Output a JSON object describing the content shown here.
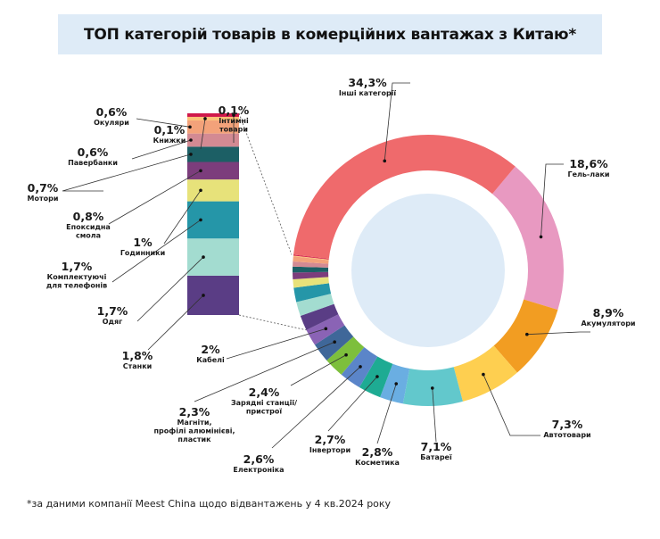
{
  "title": "ТОП категорій товарів в комерційних вантажах з Китаю*",
  "footnote": "*за даними компанії Meest China щодо відвантажень у 4 кв.2024 року",
  "chart_data": {
    "type": "pie",
    "subtype": "donut-with-bar-of-pie",
    "title": "ТОП категорій товарів в комерційних вантажах з Китаю*",
    "unit": "%",
    "slices": [
      {
        "label": "Гель-лаки",
        "value": 18.6,
        "value_text": "18,6%",
        "label_lines": [
          "Гель-лаки"
        ],
        "color": "#e899c1"
      },
      {
        "label": "Акумулятори",
        "value": 8.9,
        "value_text": "8,9%",
        "label_lines": [
          "Акумулятори"
        ],
        "color": "#f29d22"
      },
      {
        "label": "Автотовари",
        "value": 7.3,
        "value_text": "7,3%",
        "label_lines": [
          "Автотовари"
        ],
        "color": "#fecf50"
      },
      {
        "label": "Батареї",
        "value": 7.1,
        "value_text": "7,1%",
        "label_lines": [
          "Батареї"
        ],
        "color": "#62c8cc"
      },
      {
        "label": "Косметика",
        "value": 2.8,
        "value_text": "2,8%",
        "label_lines": [
          "Косметика"
        ],
        "color": "#6aaee2"
      },
      {
        "label": "Інвертори",
        "value": 2.7,
        "value_text": "2,7%",
        "label_lines": [
          "Інвертори"
        ],
        "color": "#1eab93"
      },
      {
        "label": "Електроніка",
        "value": 2.6,
        "value_text": "2,6%",
        "label_lines": [
          "Електроніка"
        ],
        "color": "#5b85c9"
      },
      {
        "label": "Зарядні станції/пристрої",
        "value": 2.4,
        "value_text": "2,4%",
        "label_lines": [
          "Зарядні станції/",
          "пристрої"
        ],
        "color": "#7dbf3c"
      },
      {
        "label": "Магніти, профілі алюмінієві, пластик",
        "value": 2.3,
        "value_text": "2,3%",
        "label_lines": [
          "Магніти,",
          "профілі алюмінієві,",
          "пластик"
        ],
        "color": "#3f6799"
      },
      {
        "label": "Кабелі",
        "value": 2.0,
        "value_text": "2%",
        "label_lines": [
          "Кабелі"
        ],
        "color": "#8a63b5"
      },
      {
        "label": "Станки",
        "value": 1.8,
        "value_text": "1,8%",
        "label_lines": [
          "Станки"
        ],
        "color": "#5a3d85"
      },
      {
        "label": "Одяг",
        "value": 1.7,
        "value_text": "1,7%",
        "label_lines": [
          "Одяг"
        ],
        "color": "#a3dcd0"
      },
      {
        "label": "Комплектуючі для телефонів",
        "value": 1.7,
        "value_text": "1,7%",
        "label_lines": [
          "Комплектуючі",
          "для телефонів"
        ],
        "color": "#2596a8"
      },
      {
        "label": "Годинники",
        "value": 1.0,
        "value_text": "1%",
        "label_lines": [
          "Годинники"
        ],
        "color": "#e7e27a"
      },
      {
        "label": "Епоксидна смола",
        "value": 0.8,
        "value_text": "0,8%",
        "label_lines": [
          "Епоксидна",
          "смола"
        ],
        "color": "#7c3d7c"
      },
      {
        "label": "Мотори",
        "value": 0.7,
        "value_text": "0,7%",
        "label_lines": [
          "Мотори"
        ],
        "color": "#1c5f65"
      },
      {
        "label": "Павербанки",
        "value": 0.6,
        "value_text": "0,6%",
        "label_lines": [
          "Павербанки"
        ],
        "color": "#d38a93"
      },
      {
        "label": "Окуляри",
        "value": 0.6,
        "value_text": "0,6%",
        "label_lines": [
          "Окуляри"
        ],
        "color": "#f3a27a"
      },
      {
        "label": "Книжки",
        "value": 0.1,
        "value_text": "0,1%",
        "label_lines": [
          "Книжки"
        ],
        "color": "#fbc177"
      },
      {
        "label": "Інтимні товари",
        "value": 0.1,
        "value_text": "0,1%",
        "label_lines": [
          "Інтимні",
          "товари"
        ],
        "color": "#d0184a"
      },
      {
        "label": "Інші категорії",
        "value": 34.3,
        "value_text": "34,3%",
        "label_lines": [
          "Інші категорії"
        ],
        "color": "#ef6a6c"
      }
    ],
    "center_fill": "#deebf7",
    "legend": "none"
  }
}
